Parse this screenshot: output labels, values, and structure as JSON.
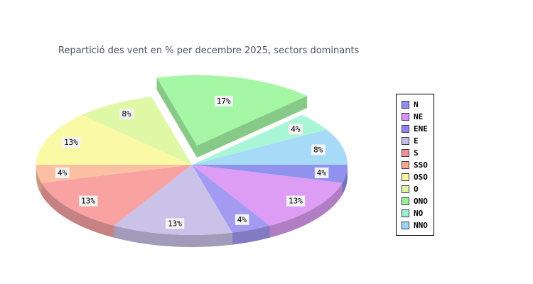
{
  "chart_data": {
    "type": "pie",
    "style": "3d-exploded",
    "title": "Repartició des vent en % per decembre 2025, sectors dominants",
    "title_color": "#4b5365",
    "background_color": "#ffffff",
    "legend_position": "right",
    "legend_border_color": "#000000",
    "start_angle_deg": 0,
    "direction": "clockwise",
    "label_box_color": "#f3f3f3",
    "sectors": [
      {
        "label": "N",
        "percent": 4,
        "percent_label": "4%",
        "degrees": 15,
        "color": "#9192ee",
        "legend_color": "#8f8ff1",
        "exploded": false
      },
      {
        "label": "NE",
        "percent": 13,
        "percent_label": "13%",
        "degrees": 45,
        "color": "#de9df4",
        "legend_color": "#dc92f3",
        "exploded": false
      },
      {
        "label": "ENE",
        "percent": 4,
        "percent_label": "4%",
        "degrees": 15,
        "color": "#a39af1",
        "legend_color": "#9383f0",
        "exploded": false
      },
      {
        "label": "E",
        "percent": 13,
        "percent_label": "13%",
        "degrees": 45,
        "color": "#cac2e8",
        "legend_color": "#c6bde4",
        "exploded": false
      },
      {
        "label": "S",
        "percent": 13,
        "percent_label": "13%",
        "degrees": 45,
        "color": "#f8a2a2",
        "legend_color": "#f79090",
        "exploded": false
      },
      {
        "label": "SSO",
        "percent": 4,
        "percent_label": "4%",
        "degrees": 15,
        "color": "#fbc0a2",
        "legend_color": "#f9a78c",
        "exploded": false
      },
      {
        "label": "OSO",
        "percent": 13,
        "percent_label": "13%",
        "degrees": 45,
        "color": "#f9f9a6",
        "legend_color": "#f8f89e",
        "exploded": false
      },
      {
        "label": "O",
        "percent": 8,
        "percent_label": "8%",
        "degrees": 30,
        "color": "#def8a6",
        "legend_color": "#ddf89e",
        "exploded": false
      },
      {
        "label": "ONO",
        "percent": 17,
        "percent_label": "17%",
        "degrees": 60,
        "color": "#a5f6a5",
        "legend_color": "#98f298",
        "exploded": true
      },
      {
        "label": "NO",
        "percent": 4,
        "percent_label": "4%",
        "degrees": 15,
        "color": "#a9f6d7",
        "legend_color": "#98f2cc",
        "exploded": false
      },
      {
        "label": "NNO",
        "percent": 8,
        "percent_label": "8%",
        "degrees": 30,
        "color": "#a7daf7",
        "legend_color": "#98d4f4",
        "exploded": false
      }
    ]
  }
}
